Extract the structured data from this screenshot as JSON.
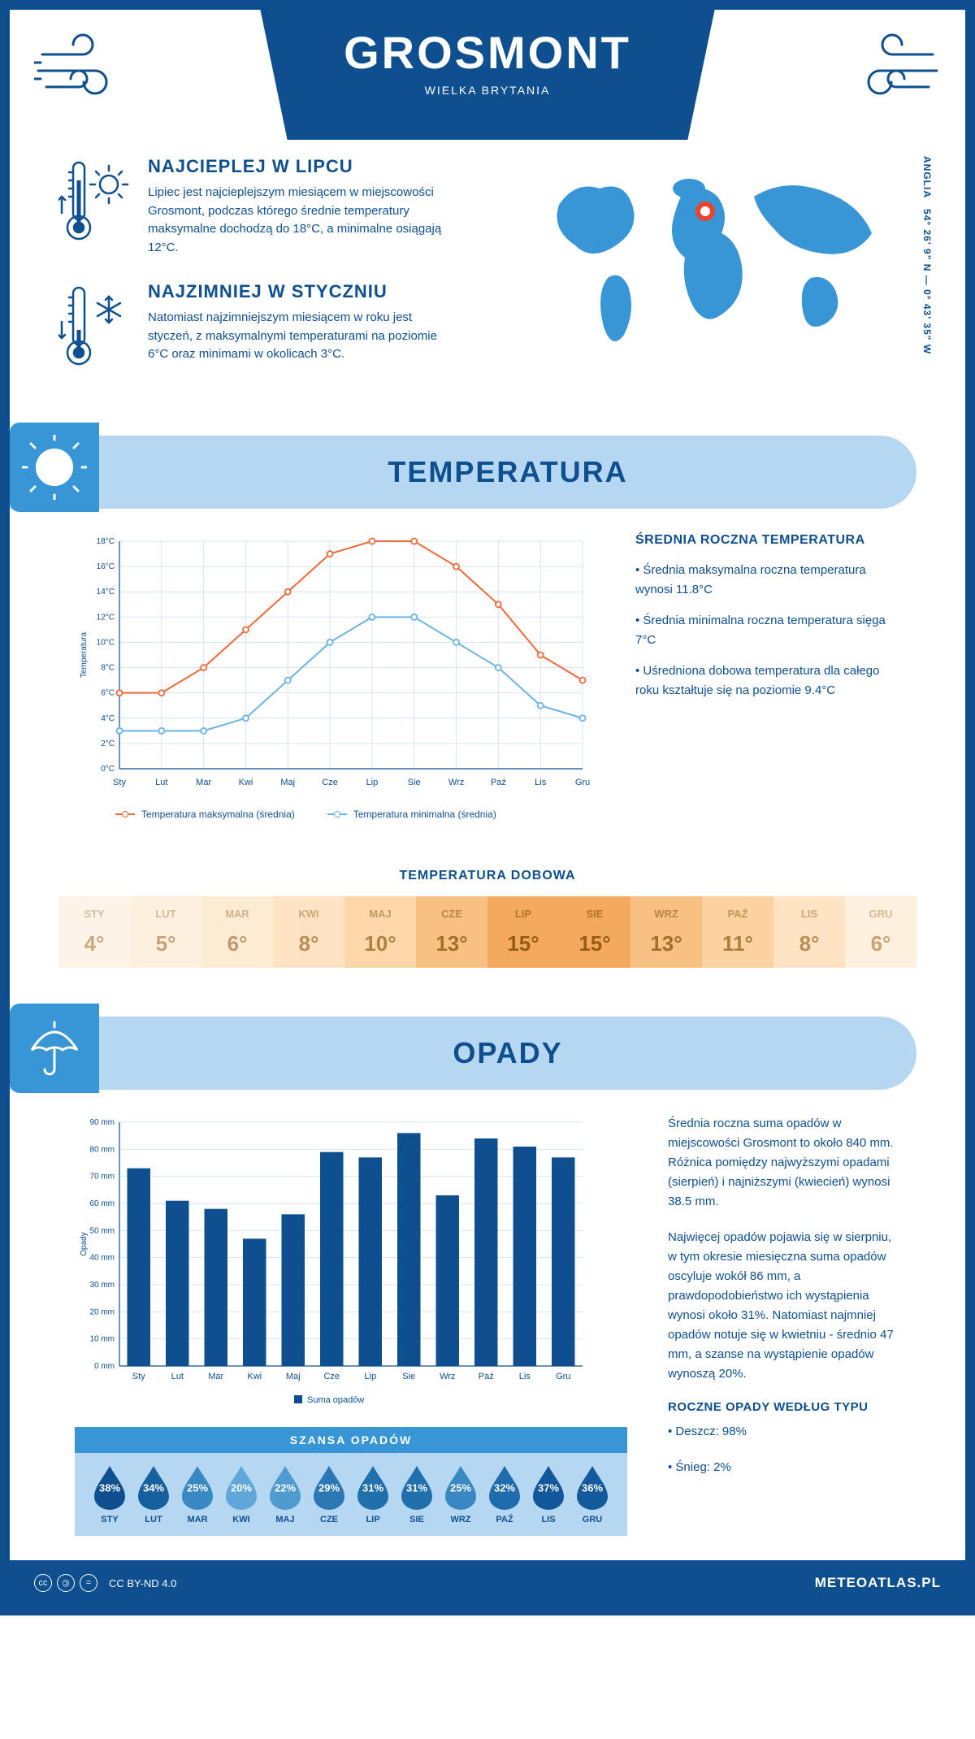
{
  "header": {
    "city": "GROSMONT",
    "country": "WIELKA BRYTANIA"
  },
  "coords": {
    "text": "54° 26' 9\" N — 0° 43' 35\" W",
    "region": "ANGLIA"
  },
  "facts": {
    "hot": {
      "title": "NAJCIEPLEJ W LIPCU",
      "body": "Lipiec jest najcieplejszym miesiącem w miejscowości Grosmont, podczas którego średnie temperatury maksymalne dochodzą do 18°C, a minimalne osiągają 12°C."
    },
    "cold": {
      "title": "NAJZIMNIEJ W STYCZNIU",
      "body": "Natomiast najzimniejszym miesiącem w roku jest styczeń, z maksymalnymi temperaturami na poziomie 6°C oraz minimami w okolicach 3°C."
    }
  },
  "temp_section": {
    "title": "TEMPERATURA"
  },
  "temp_chart": {
    "type": "line",
    "months": [
      "Sty",
      "Lut",
      "Mar",
      "Kwi",
      "Maj",
      "Cze",
      "Lip",
      "Sie",
      "Wrz",
      "Paź",
      "Lis",
      "Gru"
    ],
    "max": [
      6,
      6,
      8,
      11,
      14,
      17,
      18,
      18,
      16,
      13,
      9,
      7
    ],
    "min": [
      3,
      3,
      3,
      4,
      7,
      10,
      12,
      12,
      10,
      8,
      5,
      4
    ],
    "ylim": [
      0,
      18
    ],
    "ytick_step": 2,
    "max_color": "#ed6b3a",
    "min_color": "#6bb3e6",
    "grid_color": "#d7e4ef",
    "axis_color": "#0e4f8f",
    "yaxis_label": "Temperatura",
    "legend_max": "Temperatura maksymalna (średnia)",
    "legend_min": "Temperatura minimalna (średnia)"
  },
  "temp_text": {
    "title": "ŚREDNIA ROCZNA TEMPERATURA",
    "b1": "• Średnia maksymalna roczna temperatura wynosi 11.8°C",
    "b2": "• Średnia minimalna roczna temperatura sięga 7°C",
    "b3": "• Uśredniona dobowa temperatura dla całego roku kształtuje się na poziomie 9.4°C"
  },
  "daily": {
    "title": "TEMPERATURA DOBOWA",
    "months": [
      "STY",
      "LUT",
      "MAR",
      "KWI",
      "MAJ",
      "CZE",
      "LIP",
      "SIE",
      "WRZ",
      "PAŹ",
      "LIS",
      "GRU"
    ],
    "values": [
      "4°",
      "5°",
      "6°",
      "8°",
      "10°",
      "13°",
      "15°",
      "15°",
      "13°",
      "11°",
      "8°",
      "6°"
    ],
    "colors": [
      "#fdf3e6",
      "#fdf0de",
      "#fdecd4",
      "#fde3c1",
      "#fcd7a9",
      "#f8c083",
      "#f3aa5f",
      "#f3aa5f",
      "#f8c083",
      "#fbd2a0",
      "#fde3c1",
      "#fdf0de"
    ],
    "text_colors": [
      "#c9a97f",
      "#c6a276",
      "#c19a6a",
      "#b98e58",
      "#b08043",
      "#a26e2a",
      "#955d13",
      "#955d13",
      "#a26e2a",
      "#ad7c3d",
      "#b98e58",
      "#c6a276"
    ]
  },
  "opady_section": {
    "title": "OPADY"
  },
  "opady_chart": {
    "type": "bar",
    "months": [
      "Sty",
      "Lut",
      "Mar",
      "Kwi",
      "Maj",
      "Cze",
      "Lip",
      "Sie",
      "Wrz",
      "Paź",
      "Lis",
      "Gru"
    ],
    "values": [
      73,
      61,
      58,
      47,
      56,
      79,
      77,
      86,
      63,
      84,
      81,
      77
    ],
    "ylim": [
      0,
      90
    ],
    "ytick_step": 10,
    "bar_color": "#0e4f8f",
    "grid_color": "#d7e4ef",
    "yaxis_label": "Opady",
    "legend": "Suma opadów"
  },
  "opady_text": {
    "p1": "Średnia roczna suma opadów w miejscowości Grosmont to około 840 mm. Różnica pomiędzy najwyższymi opadami (sierpień) i najniższymi (kwiecień) wynosi 38.5 mm.",
    "p2": "Najwięcej opadów pojawia się w sierpniu, w tym okresie miesięczna suma opadów oscyluje wokół 86 mm, a prawdopodobieństwo ich wystąpienia wynosi około 31%. Natomiast najmniej opadów notuje się w kwietniu - średnio 47 mm, a szanse na wystąpienie opadów wynoszą 20%.",
    "types_title": "ROCZNE OPADY WEDŁUG TYPU",
    "t1": "• Deszcz: 98%",
    "t2": "• Śnieg: 2%"
  },
  "szansa": {
    "title": "SZANSA OPADÓW",
    "months": [
      "STY",
      "LUT",
      "MAR",
      "KWI",
      "MAJ",
      "CZE",
      "LIP",
      "SIE",
      "WRZ",
      "PAŹ",
      "LIS",
      "GRU"
    ],
    "values": [
      "38%",
      "34%",
      "25%",
      "20%",
      "22%",
      "29%",
      "31%",
      "31%",
      "25%",
      "32%",
      "37%",
      "36%"
    ],
    "colors": [
      "#0e4f8f",
      "#1760a0",
      "#3a88c2",
      "#5ea7d8",
      "#4f9bd0",
      "#2b78b5",
      "#2170ae",
      "#2170ae",
      "#3a88c2",
      "#1e6cab",
      "#11579a",
      "#135a9c"
    ]
  },
  "footer": {
    "license": "CC BY-ND 4.0",
    "brand": "METEOATLAS.PL"
  }
}
